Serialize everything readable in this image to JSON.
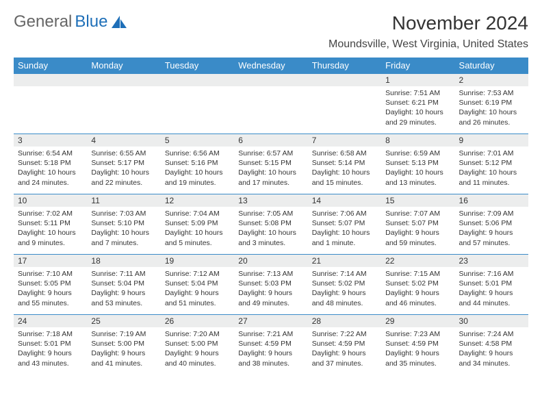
{
  "logo": {
    "text1": "General",
    "text2": "Blue"
  },
  "title": "November 2024",
  "location": "Moundsville, West Virginia, United States",
  "colors": {
    "header_bg": "#3a8bc8",
    "header_text": "#ffffff",
    "daynum_bg": "#eceded",
    "border": "#3a8bc8",
    "logo_gray": "#666666",
    "logo_blue": "#1e6fb8"
  },
  "dayHeaders": [
    "Sunday",
    "Monday",
    "Tuesday",
    "Wednesday",
    "Thursday",
    "Friday",
    "Saturday"
  ],
  "weeks": [
    [
      {
        "n": "",
        "lines": []
      },
      {
        "n": "",
        "lines": []
      },
      {
        "n": "",
        "lines": []
      },
      {
        "n": "",
        "lines": []
      },
      {
        "n": "",
        "lines": []
      },
      {
        "n": "1",
        "lines": [
          "Sunrise: 7:51 AM",
          "Sunset: 6:21 PM",
          "Daylight: 10 hours",
          "and 29 minutes."
        ]
      },
      {
        "n": "2",
        "lines": [
          "Sunrise: 7:53 AM",
          "Sunset: 6:19 PM",
          "Daylight: 10 hours",
          "and 26 minutes."
        ]
      }
    ],
    [
      {
        "n": "3",
        "lines": [
          "Sunrise: 6:54 AM",
          "Sunset: 5:18 PM",
          "Daylight: 10 hours",
          "and 24 minutes."
        ]
      },
      {
        "n": "4",
        "lines": [
          "Sunrise: 6:55 AM",
          "Sunset: 5:17 PM",
          "Daylight: 10 hours",
          "and 22 minutes."
        ]
      },
      {
        "n": "5",
        "lines": [
          "Sunrise: 6:56 AM",
          "Sunset: 5:16 PM",
          "Daylight: 10 hours",
          "and 19 minutes."
        ]
      },
      {
        "n": "6",
        "lines": [
          "Sunrise: 6:57 AM",
          "Sunset: 5:15 PM",
          "Daylight: 10 hours",
          "and 17 minutes."
        ]
      },
      {
        "n": "7",
        "lines": [
          "Sunrise: 6:58 AM",
          "Sunset: 5:14 PM",
          "Daylight: 10 hours",
          "and 15 minutes."
        ]
      },
      {
        "n": "8",
        "lines": [
          "Sunrise: 6:59 AM",
          "Sunset: 5:13 PM",
          "Daylight: 10 hours",
          "and 13 minutes."
        ]
      },
      {
        "n": "9",
        "lines": [
          "Sunrise: 7:01 AM",
          "Sunset: 5:12 PM",
          "Daylight: 10 hours",
          "and 11 minutes."
        ]
      }
    ],
    [
      {
        "n": "10",
        "lines": [
          "Sunrise: 7:02 AM",
          "Sunset: 5:11 PM",
          "Daylight: 10 hours",
          "and 9 minutes."
        ]
      },
      {
        "n": "11",
        "lines": [
          "Sunrise: 7:03 AM",
          "Sunset: 5:10 PM",
          "Daylight: 10 hours",
          "and 7 minutes."
        ]
      },
      {
        "n": "12",
        "lines": [
          "Sunrise: 7:04 AM",
          "Sunset: 5:09 PM",
          "Daylight: 10 hours",
          "and 5 minutes."
        ]
      },
      {
        "n": "13",
        "lines": [
          "Sunrise: 7:05 AM",
          "Sunset: 5:08 PM",
          "Daylight: 10 hours",
          "and 3 minutes."
        ]
      },
      {
        "n": "14",
        "lines": [
          "Sunrise: 7:06 AM",
          "Sunset: 5:07 PM",
          "Daylight: 10 hours",
          "and 1 minute."
        ]
      },
      {
        "n": "15",
        "lines": [
          "Sunrise: 7:07 AM",
          "Sunset: 5:07 PM",
          "Daylight: 9 hours",
          "and 59 minutes."
        ]
      },
      {
        "n": "16",
        "lines": [
          "Sunrise: 7:09 AM",
          "Sunset: 5:06 PM",
          "Daylight: 9 hours",
          "and 57 minutes."
        ]
      }
    ],
    [
      {
        "n": "17",
        "lines": [
          "Sunrise: 7:10 AM",
          "Sunset: 5:05 PM",
          "Daylight: 9 hours",
          "and 55 minutes."
        ]
      },
      {
        "n": "18",
        "lines": [
          "Sunrise: 7:11 AM",
          "Sunset: 5:04 PM",
          "Daylight: 9 hours",
          "and 53 minutes."
        ]
      },
      {
        "n": "19",
        "lines": [
          "Sunrise: 7:12 AM",
          "Sunset: 5:04 PM",
          "Daylight: 9 hours",
          "and 51 minutes."
        ]
      },
      {
        "n": "20",
        "lines": [
          "Sunrise: 7:13 AM",
          "Sunset: 5:03 PM",
          "Daylight: 9 hours",
          "and 49 minutes."
        ]
      },
      {
        "n": "21",
        "lines": [
          "Sunrise: 7:14 AM",
          "Sunset: 5:02 PM",
          "Daylight: 9 hours",
          "and 48 minutes."
        ]
      },
      {
        "n": "22",
        "lines": [
          "Sunrise: 7:15 AM",
          "Sunset: 5:02 PM",
          "Daylight: 9 hours",
          "and 46 minutes."
        ]
      },
      {
        "n": "23",
        "lines": [
          "Sunrise: 7:16 AM",
          "Sunset: 5:01 PM",
          "Daylight: 9 hours",
          "and 44 minutes."
        ]
      }
    ],
    [
      {
        "n": "24",
        "lines": [
          "Sunrise: 7:18 AM",
          "Sunset: 5:01 PM",
          "Daylight: 9 hours",
          "and 43 minutes."
        ]
      },
      {
        "n": "25",
        "lines": [
          "Sunrise: 7:19 AM",
          "Sunset: 5:00 PM",
          "Daylight: 9 hours",
          "and 41 minutes."
        ]
      },
      {
        "n": "26",
        "lines": [
          "Sunrise: 7:20 AM",
          "Sunset: 5:00 PM",
          "Daylight: 9 hours",
          "and 40 minutes."
        ]
      },
      {
        "n": "27",
        "lines": [
          "Sunrise: 7:21 AM",
          "Sunset: 4:59 PM",
          "Daylight: 9 hours",
          "and 38 minutes."
        ]
      },
      {
        "n": "28",
        "lines": [
          "Sunrise: 7:22 AM",
          "Sunset: 4:59 PM",
          "Daylight: 9 hours",
          "and 37 minutes."
        ]
      },
      {
        "n": "29",
        "lines": [
          "Sunrise: 7:23 AM",
          "Sunset: 4:59 PM",
          "Daylight: 9 hours",
          "and 35 minutes."
        ]
      },
      {
        "n": "30",
        "lines": [
          "Sunrise: 7:24 AM",
          "Sunset: 4:58 PM",
          "Daylight: 9 hours",
          "and 34 minutes."
        ]
      }
    ]
  ]
}
